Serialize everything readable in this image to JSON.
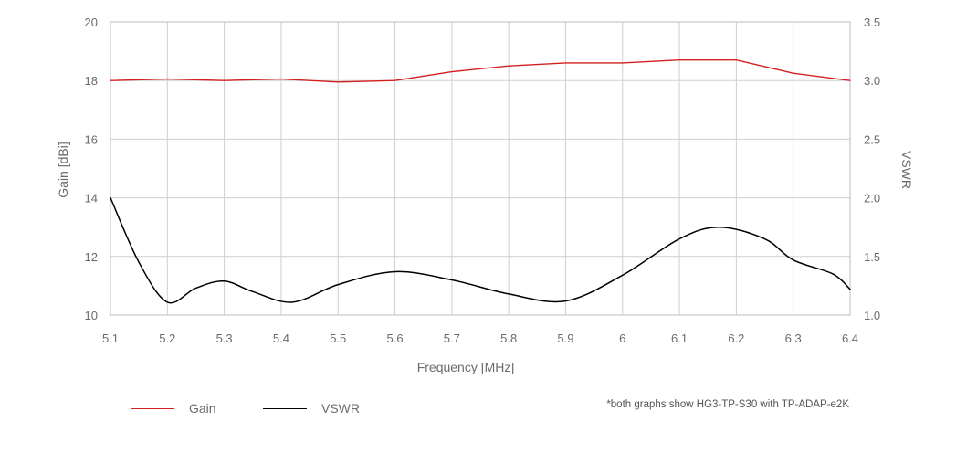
{
  "chart_data": {
    "type": "line",
    "xlabel": "Frequency [MHz]",
    "ylabel_left": "Gain [dBi]",
    "ylabel_right": "VSWR",
    "xlim": [
      5.1,
      6.4
    ],
    "xticks": [
      "5.1",
      "5.2",
      "5.3",
      "5.4",
      "5.5",
      "5.6",
      "5.7",
      "5.8",
      "5.9",
      "6",
      "6.1",
      "6.2",
      "6.3",
      "6.4"
    ],
    "ylim_left": [
      10,
      20
    ],
    "yticks_left": [
      "10",
      "12",
      "14",
      "16",
      "18",
      "20"
    ],
    "ylim_right": [
      1.0,
      3.5
    ],
    "yticks_right": [
      "1.0",
      "1.5",
      "2.0",
      "2.5",
      "3.0",
      "3.5"
    ],
    "grid": true,
    "legend_position": "bottom-left",
    "series": [
      {
        "name": "Gain",
        "axis": "left",
        "color": "#d42020",
        "x": [
          5.1,
          5.2,
          5.3,
          5.4,
          5.5,
          5.6,
          5.7,
          5.8,
          5.9,
          6.0,
          6.1,
          6.2,
          6.3,
          6.4
        ],
        "y": [
          18.0,
          18.05,
          18.0,
          18.05,
          17.95,
          18.0,
          18.3,
          18.5,
          18.6,
          18.6,
          18.7,
          18.7,
          18.25,
          18.0
        ]
      },
      {
        "name": "VSWR",
        "axis": "right",
        "color": "#000000",
        "x": [
          5.1,
          5.15,
          5.2,
          5.25,
          5.3,
          5.35,
          5.42,
          5.5,
          5.6,
          5.7,
          5.8,
          5.9,
          6.0,
          6.1,
          6.17,
          6.25,
          6.3,
          6.37,
          6.4
        ],
        "y": [
          2.0,
          1.45,
          1.11,
          1.23,
          1.29,
          1.2,
          1.11,
          1.26,
          1.37,
          1.3,
          1.18,
          1.12,
          1.34,
          1.65,
          1.75,
          1.65,
          1.47,
          1.35,
          1.22
        ]
      }
    ],
    "footnote": "*both graphs show HG3-TP-S30 with TP-ADAP-e2K"
  }
}
